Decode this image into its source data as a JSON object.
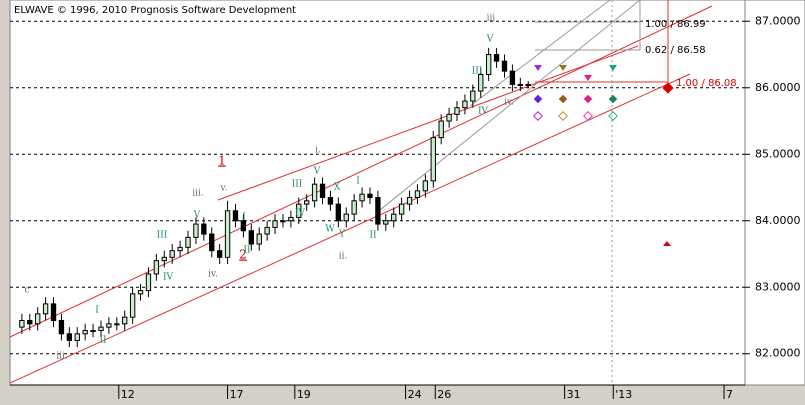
{
  "chart_data": {
    "type": "candlestick",
    "title": "ELWAVE © 1996, 2010 Prognosis Software Development",
    "x": [
      0,
      1,
      2,
      3,
      4,
      5,
      6,
      7,
      8,
      9,
      10,
      11,
      12,
      13,
      14,
      15,
      16,
      17,
      18,
      19,
      20,
      21,
      22,
      23,
      24,
      25,
      26,
      27,
      28,
      29,
      30,
      31,
      32,
      33,
      34,
      35,
      36,
      37,
      38,
      39,
      40,
      41,
      42,
      43,
      44,
      45,
      46,
      47,
      48,
      49,
      50,
      51,
      52,
      53,
      54,
      55,
      56,
      57,
      58,
      59,
      60,
      61,
      62,
      63,
      64
    ],
    "open": [
      82.4,
      82.5,
      82.45,
      82.6,
      82.75,
      82.5,
      82.3,
      82.2,
      82.3,
      82.35,
      82.35,
      82.4,
      82.45,
      82.45,
      82.55,
      82.9,
      82.95,
      83.2,
      83.4,
      83.45,
      83.55,
      83.6,
      83.75,
      83.95,
      83.8,
      83.55,
      83.45,
      84.15,
      84.0,
      83.85,
      83.65,
      83.8,
      83.9,
      84.0,
      84.0,
      84.05,
      84.25,
      84.3,
      84.55,
      84.35,
      84.25,
      84.0,
      84.1,
      84.3,
      84.4,
      84.35,
      83.95,
      84.0,
      84.1,
      84.25,
      84.35,
      84.45,
      84.6,
      85.25,
      85.5,
      85.6,
      85.7,
      85.8,
      85.95,
      86.2,
      86.5,
      86.4,
      86.25,
      86.05,
      86.05
    ],
    "high": [
      82.6,
      82.6,
      82.7,
      82.85,
      82.85,
      82.6,
      82.4,
      82.4,
      82.45,
      82.45,
      82.5,
      82.55,
      82.55,
      82.65,
      83.0,
      83.05,
      83.3,
      83.5,
      83.55,
      83.65,
      83.7,
      83.85,
      84.05,
      84.05,
      83.9,
      83.65,
      84.3,
      84.25,
      84.1,
      83.95,
      83.9,
      84.0,
      84.1,
      84.1,
      84.15,
      84.35,
      84.4,
      84.65,
      84.65,
      84.45,
      84.35,
      84.2,
      84.4,
      84.5,
      84.5,
      84.45,
      84.1,
      84.2,
      84.35,
      84.45,
      84.55,
      84.7,
      85.35,
      85.6,
      85.7,
      85.8,
      85.9,
      86.05,
      86.3,
      86.6,
      86.6,
      86.5,
      86.35,
      86.15,
      86.1
    ],
    "low": [
      82.3,
      82.35,
      82.35,
      82.5,
      82.4,
      82.2,
      82.1,
      82.1,
      82.2,
      82.25,
      82.25,
      82.3,
      82.35,
      82.35,
      82.45,
      82.8,
      82.85,
      83.1,
      83.3,
      83.35,
      83.45,
      83.5,
      83.65,
      83.7,
      83.45,
      83.35,
      83.35,
      83.9,
      83.75,
      83.55,
      83.55,
      83.7,
      83.8,
      83.9,
      83.9,
      83.95,
      84.15,
      84.2,
      84.25,
      84.15,
      83.9,
      83.9,
      84.0,
      84.2,
      84.25,
      83.85,
      83.85,
      83.9,
      84.0,
      84.15,
      84.25,
      84.35,
      84.5,
      85.15,
      85.4,
      85.5,
      85.6,
      85.7,
      85.85,
      86.1,
      86.3,
      86.15,
      85.95,
      85.95,
      86.0
    ],
    "close": [
      82.5,
      82.45,
      82.6,
      82.75,
      82.5,
      82.3,
      82.2,
      82.3,
      82.35,
      82.35,
      82.4,
      82.45,
      82.45,
      82.55,
      82.9,
      82.95,
      83.2,
      83.4,
      83.45,
      83.55,
      83.6,
      83.75,
      83.95,
      83.8,
      83.55,
      83.45,
      84.15,
      84.0,
      83.85,
      83.65,
      83.8,
      83.9,
      84.0,
      84.0,
      84.05,
      84.25,
      84.3,
      84.55,
      84.35,
      84.25,
      84.0,
      84.1,
      84.3,
      84.4,
      84.35,
      83.95,
      84.0,
      84.1,
      84.25,
      84.35,
      84.45,
      84.6,
      85.25,
      85.5,
      85.6,
      85.7,
      85.8,
      85.95,
      86.2,
      86.5,
      86.4,
      86.25,
      86.05,
      86.05,
      86.05
    ],
    "up_color": "#c8f0c8",
    "down_color": "#000000",
    "xlim": [
      -1.5,
      91.4
    ],
    "xticks": [
      {
        "value": 12.25,
        "label": "12"
      },
      {
        "value": 26,
        "label": "17"
      },
      {
        "value": 34.5,
        "label": "19"
      },
      {
        "value": 48.5,
        "label": "24"
      },
      {
        "value": 52.25,
        "label": "26"
      },
      {
        "value": 68.6,
        "label": "31"
      },
      {
        "value": 74.75,
        "label": "'13"
      },
      {
        "value": 88.75,
        "label": "7"
      }
    ],
    "ylim": [
      81.53,
      87.32
    ],
    "yticks": [
      {
        "value": 82,
        "label": "82.0000"
      },
      {
        "value": 83,
        "label": "83.0000"
      },
      {
        "value": 84,
        "label": "84.0000"
      },
      {
        "value": 85,
        "label": "85.0000"
      },
      {
        "value": 86,
        "label": "86.0000"
      },
      {
        "value": 87,
        "label": "87.0000"
      }
    ],
    "grid": true,
    "annotations": [
      "1.00 / 86.99",
      "0.62 / 86.58",
      "1.00 / 86.08"
    ],
    "waves": [
      "c",
      "iii.",
      "I",
      "II",
      "III",
      "IV",
      "V",
      "iii.",
      "iv.",
      "v.",
      "1",
      "2",
      "I",
      "II",
      "III",
      "IV",
      "V",
      "i.",
      "X",
      "W",
      "Y",
      "ii.",
      "I",
      "II",
      "III",
      "IV",
      "V",
      "iii",
      "iv."
    ]
  }
}
